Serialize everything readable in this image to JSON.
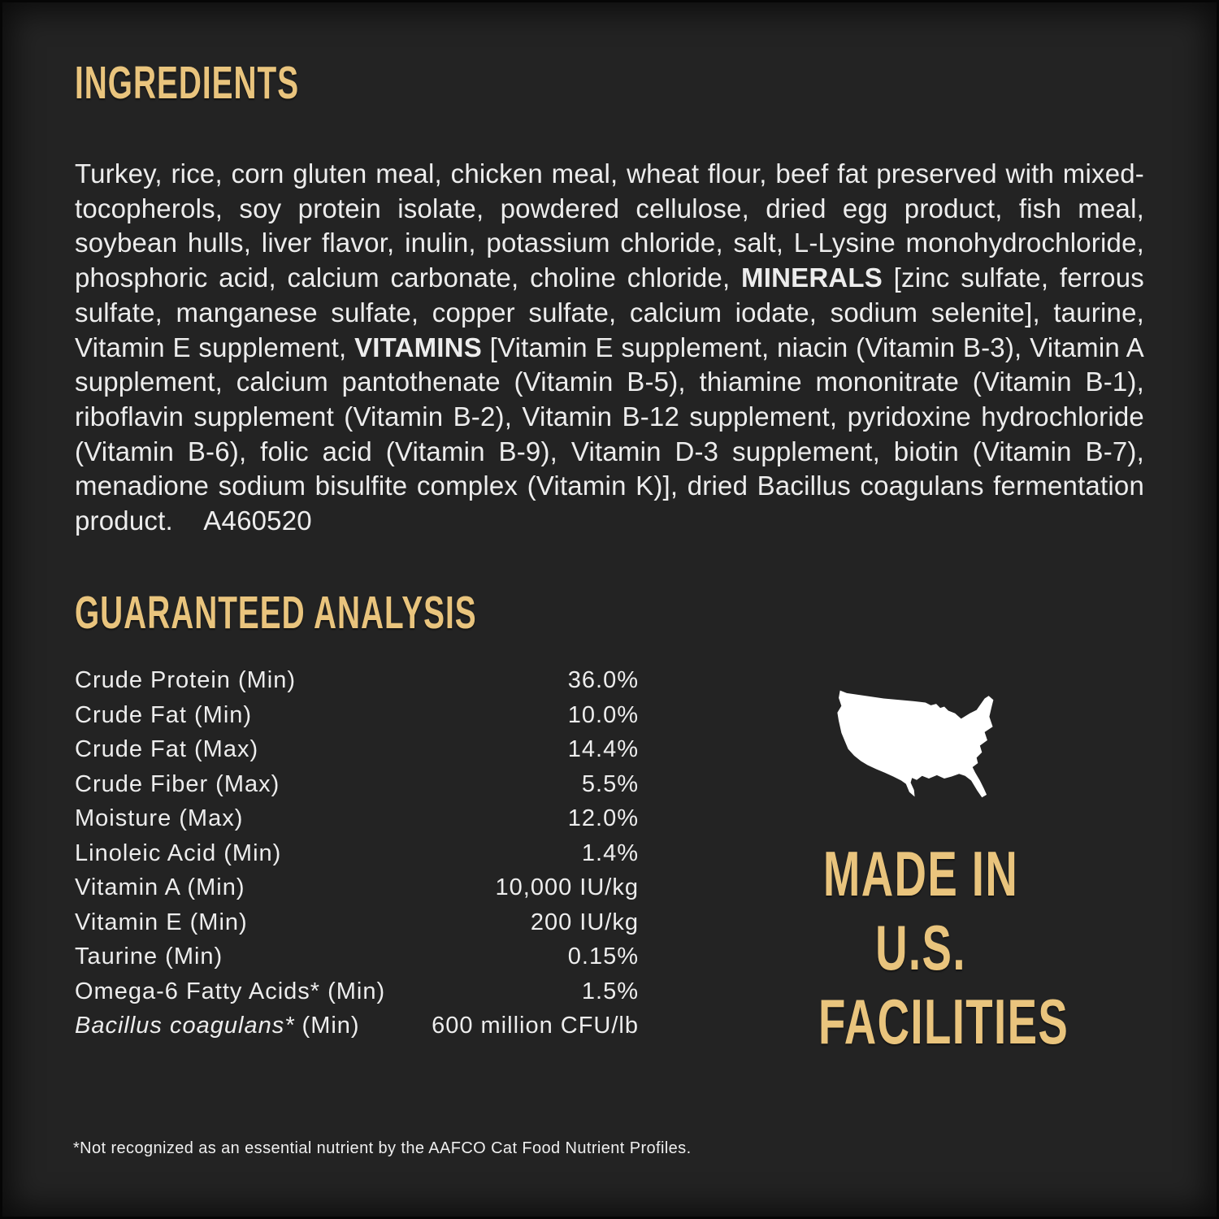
{
  "colors": {
    "background": "#232323",
    "heading_gold": "#e9c47d",
    "body_text": "#ededed",
    "map_white": "#ffffff"
  },
  "ingredients": {
    "title": "INGREDIENTS",
    "segments": [
      {
        "text": "Turkey, rice, corn gluten meal, chicken meal, wheat flour, beef fat preserved with mixed-tocopherols, soy protein isolate, powdered cellulose, dried egg product, fish meal, soybean hulls, liver flavor, inulin, potassium chloride, salt, L-Lysine monohydrochloride, phosphoric acid, calcium carbonate, choline chloride, ",
        "bold": false
      },
      {
        "text": "MINERALS",
        "bold": true
      },
      {
        "text": " [zinc sulfate, ferrous sulfate, manganese sulfate, copper sulfate, calcium iodate, sodium selenite], taurine, Vitamin E supplement, ",
        "bold": false
      },
      {
        "text": "VITAMINS",
        "bold": true
      },
      {
        "text": " [Vitamin E supplement, niacin (Vitamin B-3), Vitamin A supplement, calcium pantothenate (Vitamin B-5), thiamine mononitrate (Vitamin B-1), riboflavin supplement (Vitamin B-2), Vitamin B-12 supplement, pyridoxine hydrochloride (Vitamin B-6), folic acid (Vitamin B-9), Vitamin D-3 supplement, biotin (Vitamin B-7), menadione sodium bisulfite complex (Vitamin K)], dried Bacillus coagulans fermentation product.    A460520",
        "bold": false
      }
    ]
  },
  "guaranteed_analysis": {
    "title": "GUARANTEED ANALYSIS",
    "rows": [
      {
        "label_parts": [
          {
            "text": "Crude Protein (Min)",
            "italic": false
          }
        ],
        "value": "36.0%"
      },
      {
        "label_parts": [
          {
            "text": "Crude Fat (Min)",
            "italic": false
          }
        ],
        "value": "10.0%"
      },
      {
        "label_parts": [
          {
            "text": "Crude Fat (Max)",
            "italic": false
          }
        ],
        "value": "14.4%"
      },
      {
        "label_parts": [
          {
            "text": "Crude Fiber (Max)",
            "italic": false
          }
        ],
        "value": "5.5%"
      },
      {
        "label_parts": [
          {
            "text": "Moisture (Max)",
            "italic": false
          }
        ],
        "value": "12.0%"
      },
      {
        "label_parts": [
          {
            "text": "Linoleic Acid (Min)",
            "italic": false
          }
        ],
        "value": "1.4%"
      },
      {
        "label_parts": [
          {
            "text": "Vitamin A (Min)",
            "italic": false
          }
        ],
        "value": "10,000 IU/kg"
      },
      {
        "label_parts": [
          {
            "text": "Vitamin E (Min)",
            "italic": false
          }
        ],
        "value": "200 IU/kg"
      },
      {
        "label_parts": [
          {
            "text": "Taurine (Min)",
            "italic": false
          }
        ],
        "value": "0.15%"
      },
      {
        "label_parts": [
          {
            "text": "Omega-6 Fatty Acids* (Min)",
            "italic": false
          }
        ],
        "value": "1.5%"
      },
      {
        "label_parts": [
          {
            "text": "Bacillus coagulans*",
            "italic": true
          },
          {
            "text": " (Min)",
            "italic": false
          }
        ],
        "value": "600 million CFU/lb"
      }
    ]
  },
  "made_in": {
    "map_icon": "usa-map-icon",
    "lines": [
      "MADE IN",
      "U.S.",
      "FACILITIES"
    ]
  },
  "footnote": "*Not recognized as an essential nutrient by the AAFCO Cat Food Nutrient Profiles."
}
